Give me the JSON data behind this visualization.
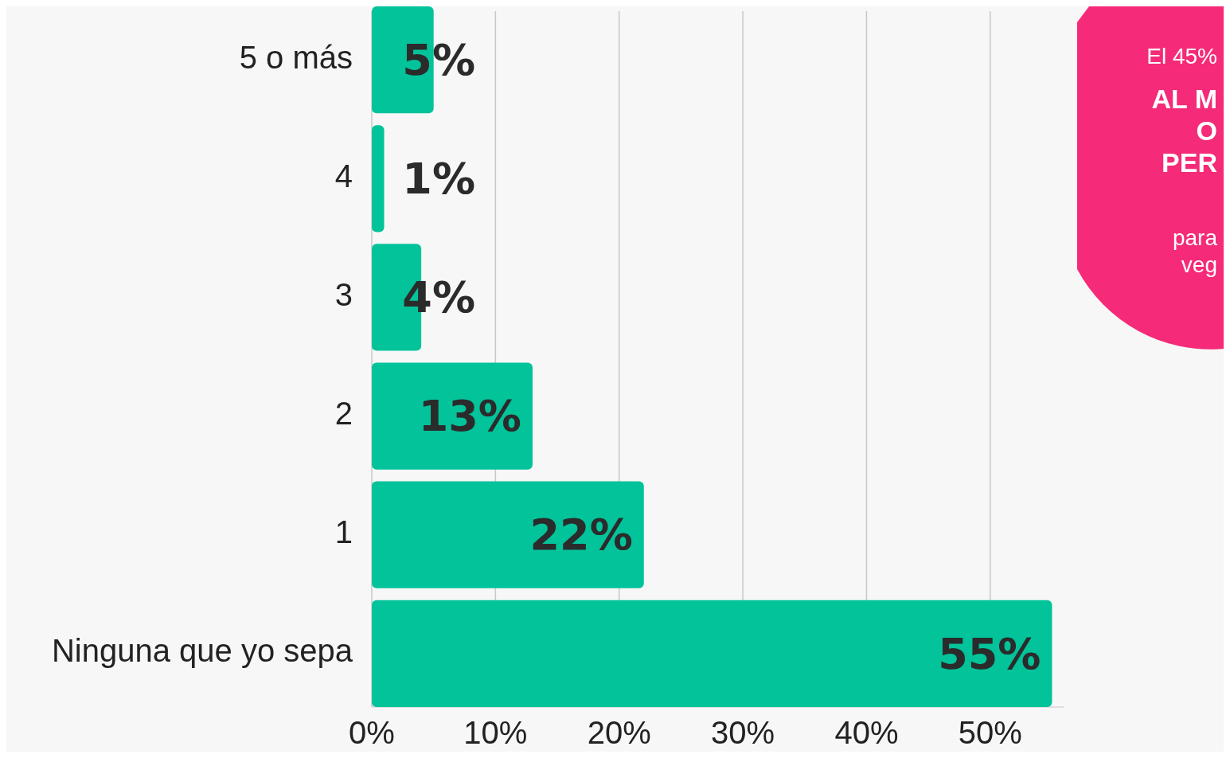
{
  "chart_data": {
    "type": "bar",
    "orientation": "horizontal",
    "categories": [
      "5 o más",
      "4",
      "3",
      "2",
      "1",
      "Ninguna que yo sepa"
    ],
    "values": [
      5,
      1,
      4,
      13,
      22,
      55
    ],
    "color": "#02c39a",
    "xlim": [
      0,
      56
    ],
    "xticks": [
      {
        "value": 0,
        "label": "0%"
      },
      {
        "value": 10,
        "label": "10%"
      },
      {
        "value": 20,
        "label": "20%"
      },
      {
        "value": 30,
        "label": "30%"
      },
      {
        "value": 40,
        "label": "40%"
      },
      {
        "value": 50,
        "label": "50%"
      }
    ],
    "value_labels": [
      "5%",
      "1%",
      "4%",
      "13%",
      "22%",
      "55%"
    ],
    "grid": "x",
    "annotations": [
      "El 45%",
      "AL M",
      "O",
      "PER",
      "para",
      "veg"
    ]
  }
}
